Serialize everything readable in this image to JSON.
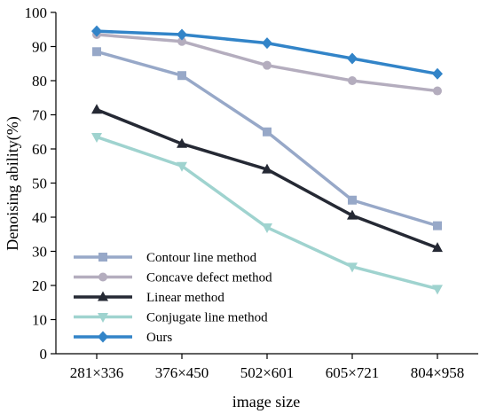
{
  "chart_data": {
    "type": "line",
    "title": "",
    "xlabel": "image size",
    "ylabel": "Denoising ability(%)",
    "categories": [
      "281×336",
      "376×450",
      "502×601",
      "605×721",
      "804×958"
    ],
    "ylim": [
      0,
      100
    ],
    "yticks": [
      0,
      10,
      20,
      30,
      40,
      50,
      60,
      70,
      80,
      90,
      100
    ],
    "grid": false,
    "legend_position": "bottom-left",
    "series": [
      {
        "name": "Contour line method",
        "values": [
          88.5,
          81.5,
          65,
          45,
          37.5
        ],
        "color": "#97a8c8",
        "marker": "square"
      },
      {
        "name": "Concave defect method",
        "values": [
          93.5,
          91.5,
          84.5,
          80,
          77
        ],
        "color": "#b4adbe",
        "marker": "circle"
      },
      {
        "name": "Linear method",
        "values": [
          71.5,
          61.5,
          54,
          40.5,
          31
        ],
        "color": "#252934",
        "marker": "triangle-up"
      },
      {
        "name": "Conjugate line method",
        "values": [
          63.5,
          55,
          37,
          25.5,
          19
        ],
        "color": "#9fd3cf",
        "marker": "triangle-down"
      },
      {
        "name": "Ours",
        "values": [
          94.5,
          93.5,
          91,
          86.5,
          82
        ],
        "color": "#3284c8",
        "marker": "diamond"
      }
    ]
  }
}
